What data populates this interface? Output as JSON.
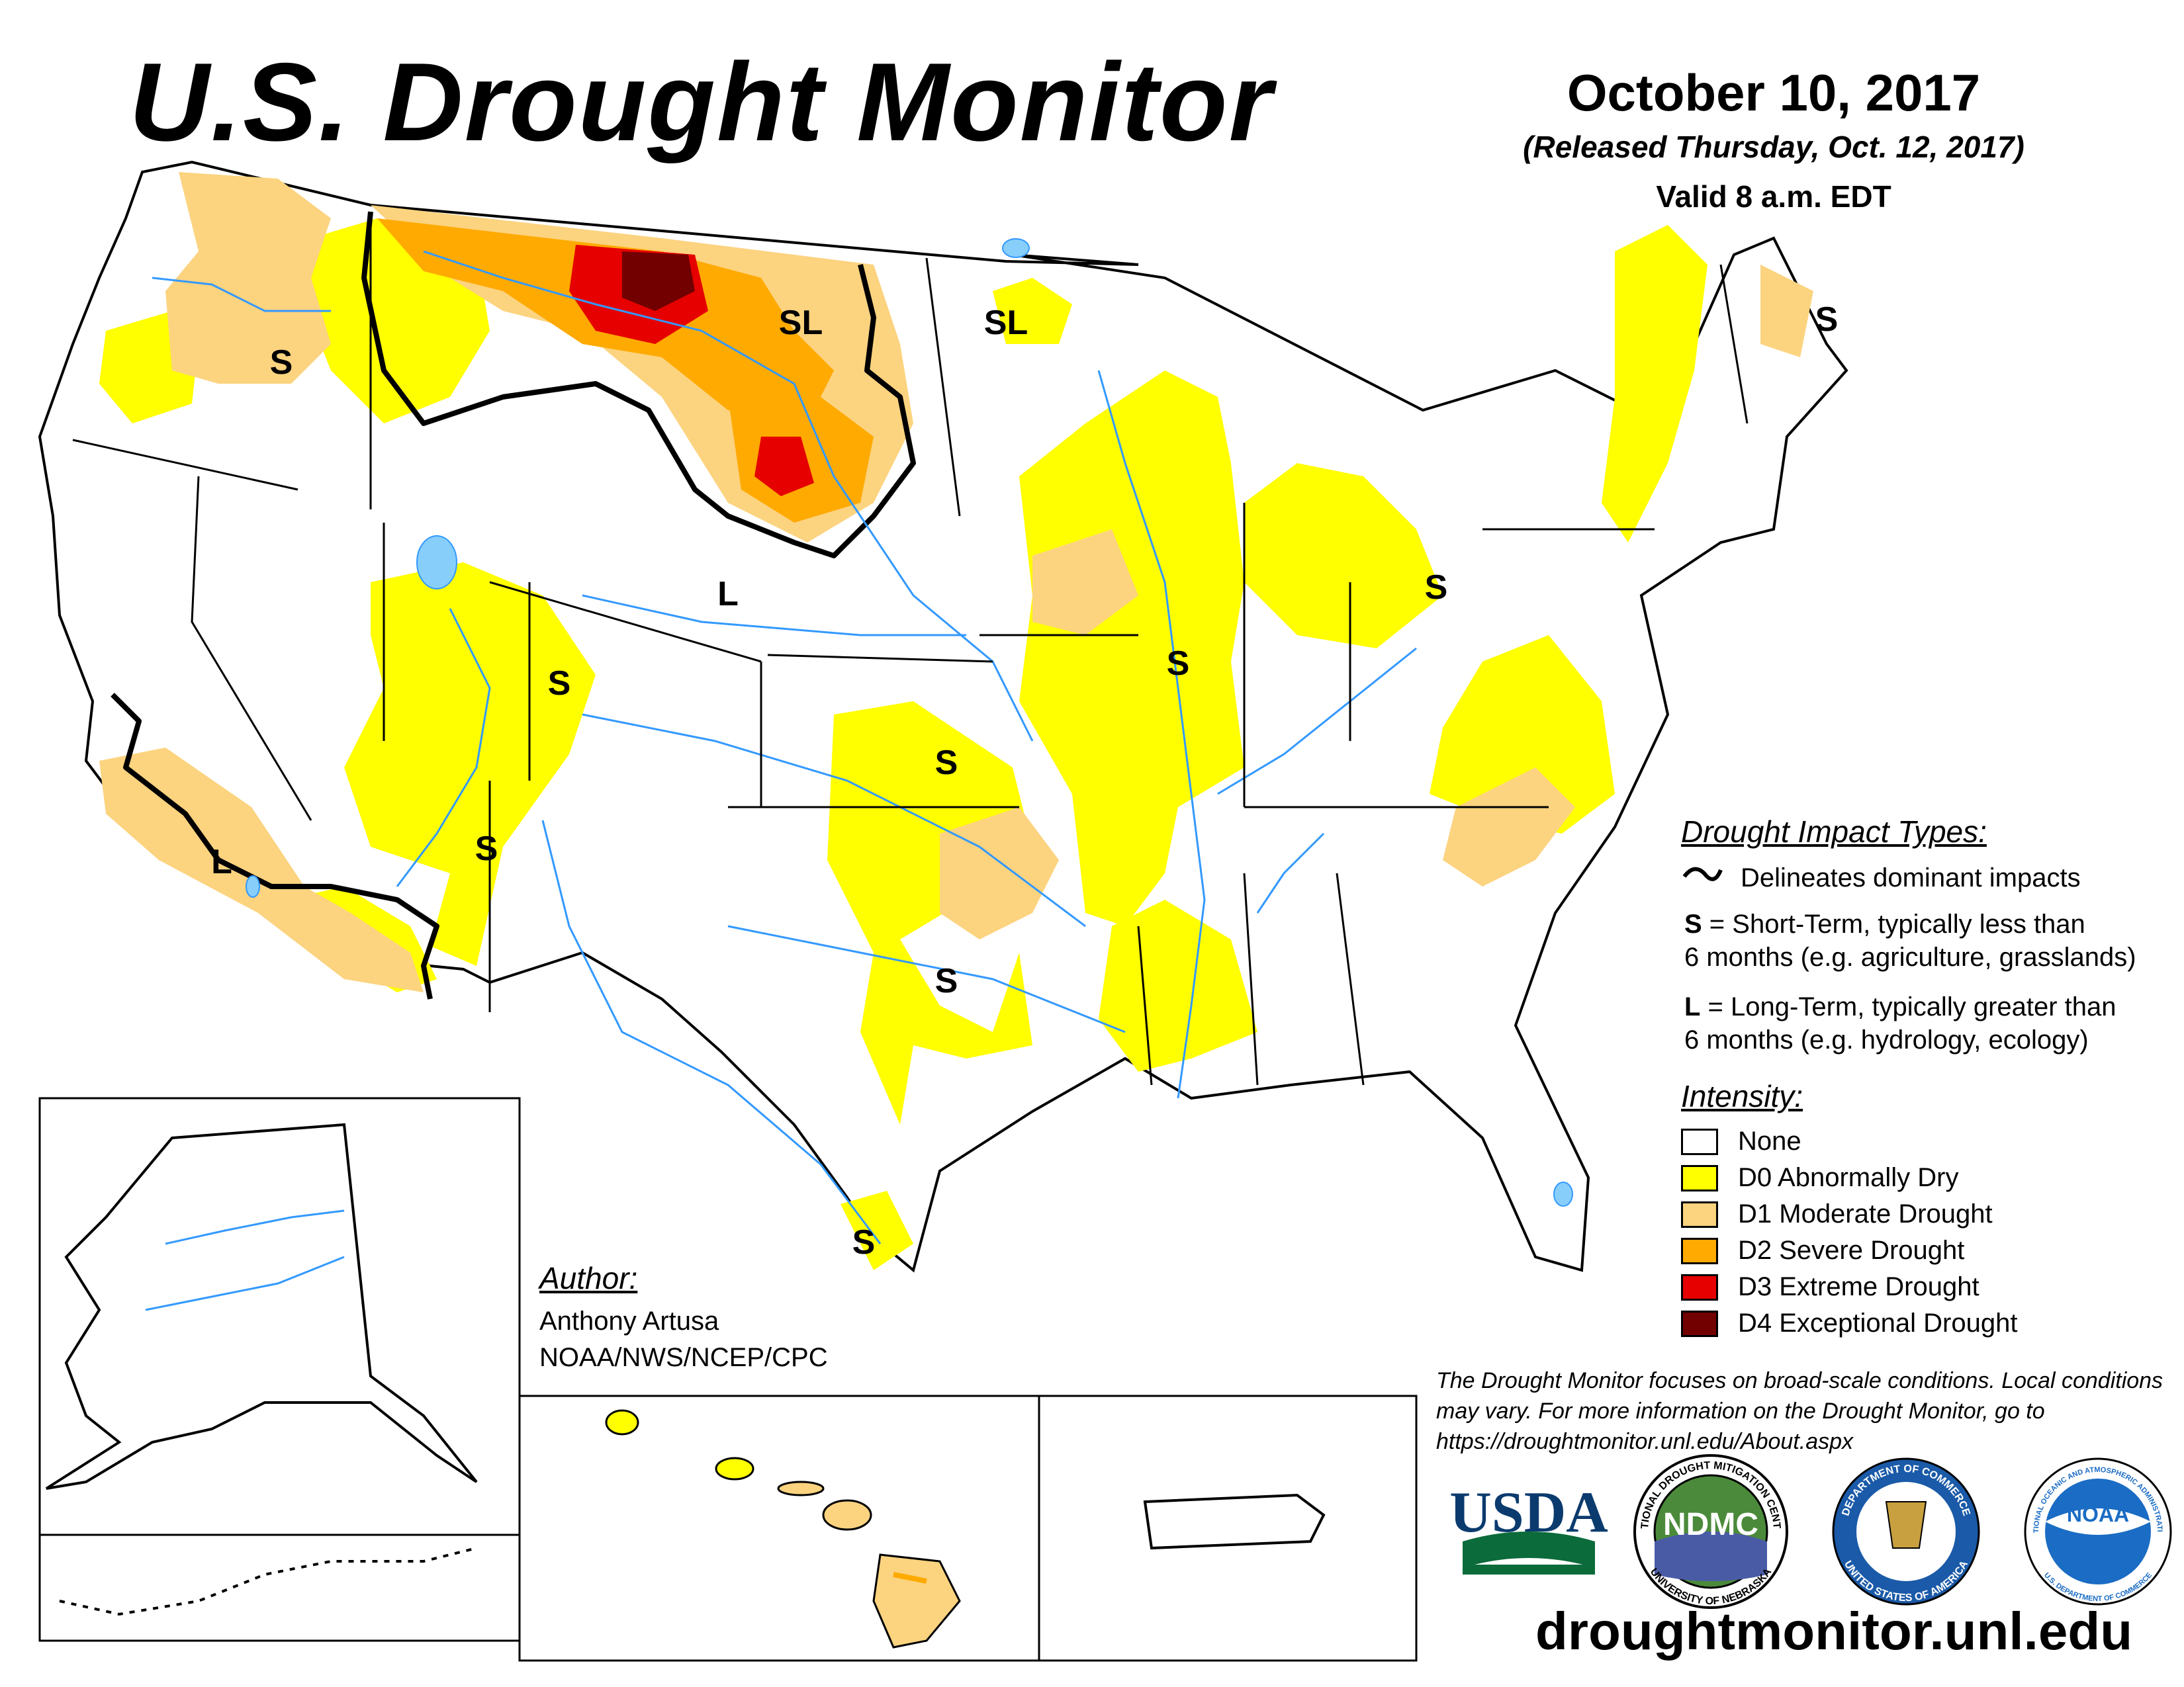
{
  "title": "U.S. Drought Monitor",
  "date": "October 10, 2017",
  "released": "(Released Thursday, Oct. 12, 2017)",
  "valid": "Valid 8 a.m. EDT",
  "impact_types": {
    "heading": "Drought Impact Types:",
    "delineates": "Delineates dominant impacts",
    "short_term_code": "S",
    "short_term_line1": " = Short-Term, typically less than",
    "short_term_line2": "6 months (e.g. agriculture, grasslands)",
    "long_term_code": "L",
    "long_term_line1": " = Long-Term, typically greater than",
    "long_term_line2": "6 months (e.g. hydrology, ecology)"
  },
  "intensity": {
    "heading": "Intensity:",
    "levels": [
      {
        "label": "None",
        "color": "#ffffff"
      },
      {
        "label": "D0 Abnormally Dry",
        "color": "#ffff00"
      },
      {
        "label": "D1 Moderate Drought",
        "color": "#fcd37f"
      },
      {
        "label": "D2 Severe Drought",
        "color": "#ffaa00"
      },
      {
        "label": "D3 Extreme Drought",
        "color": "#e60000"
      },
      {
        "label": "D4 Exceptional Drought",
        "color": "#730000"
      }
    ]
  },
  "author": {
    "heading": "Author:",
    "name": "Anthony Artusa",
    "org": "NOAA/NWS/NCEP/CPC"
  },
  "disclaimer": "The Drought Monitor focuses on broad-scale conditions. Local conditions may vary. For more information on the Drought Monitor, go to https://droughtmonitor.unl.edu/About.aspx",
  "website": "droughtmonitor.unl.edu",
  "logos": {
    "usda": "USDA",
    "ndmc": "NDMC",
    "ndmc_ring_top": "NATIONAL DROUGHT MITIGATION CENTER",
    "ndmc_ring_bottom": "UNIVERSITY OF NEBRASKA",
    "commerce_ring_top": "DEPARTMENT OF COMMERCE",
    "commerce_ring_bottom": "UNITED STATES OF AMERICA",
    "noaa": "NOAA",
    "noaa_ring_top": "NATIONAL OCEANIC AND ATMOSPHERIC ADMINISTRATION",
    "noaa_ring_bottom": "U.S. DEPARTMENT OF COMMERCE"
  },
  "map_labels": {
    "s": "S",
    "l": "L",
    "sl": "SL"
  },
  "colors": {
    "river": "#3399ff",
    "lake": "#87cefa",
    "border": "#000000"
  }
}
